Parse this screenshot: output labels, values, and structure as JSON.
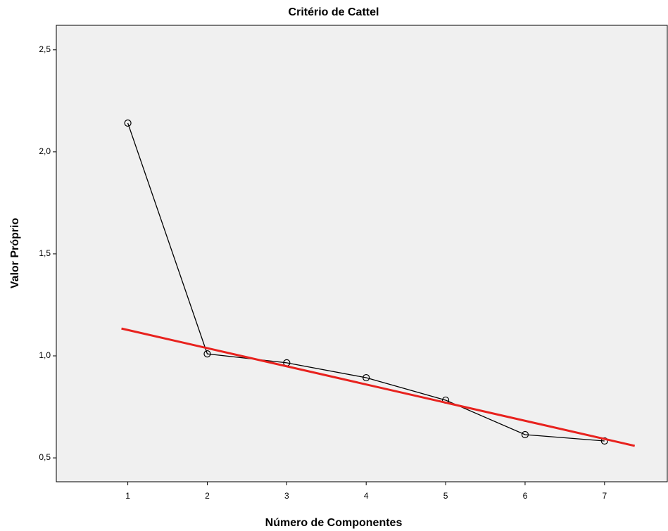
{
  "chart_data": {
    "type": "line",
    "title": "Critério de Cattel",
    "xlabel": "Número de Componentes",
    "ylabel": "Valor Próprio",
    "x": [
      1,
      2,
      3,
      4,
      5,
      6,
      7
    ],
    "series": [
      {
        "color": "#000000",
        "values": [
          2.141,
          1.01,
          0.966,
          0.893,
          0.783,
          0.614,
          0.583
        ]
      }
    ],
    "trend_line": {
      "color": "#e8221e",
      "x": [
        0.92,
        7.38
      ],
      "values": [
        1.134,
        0.559
      ]
    },
    "xlim": [
      0.1,
      7.79
    ],
    "ylim": [
      0.383,
      2.62
    ],
    "xticks": [
      1,
      2,
      3,
      4,
      5,
      6,
      7
    ],
    "yticks": [
      {
        "value": 0.5,
        "label": "0,5"
      },
      {
        "value": 1.0,
        "label": "1,0"
      },
      {
        "value": 1.5,
        "label": "1,5"
      },
      {
        "value": 2.0,
        "label": "2,0"
      },
      {
        "value": 2.5,
        "label": "2,5"
      }
    ]
  }
}
